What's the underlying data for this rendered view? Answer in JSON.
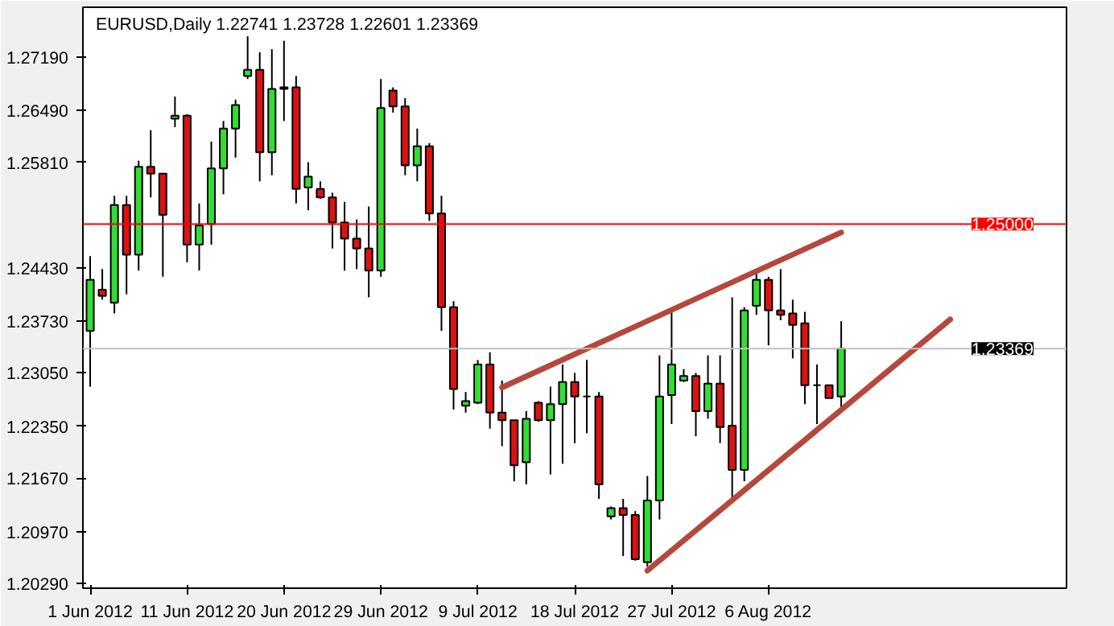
{
  "chart_data": {
    "type": "candlestick",
    "title": "EURUSD,Daily 1.22741 1.23728 1.22601 1.23369",
    "categories": [
      "1 Jun 2012",
      null,
      null,
      null,
      null,
      null,
      null,
      null,
      "11 Jun 2012",
      null,
      null,
      null,
      null,
      null,
      null,
      null,
      "20 Jun 2012",
      null,
      null,
      null,
      null,
      null,
      null,
      null,
      "29 Jun 2012",
      null,
      null,
      null,
      null,
      null,
      null,
      null,
      "9 Jul 2012",
      null,
      null,
      null,
      null,
      null,
      null,
      null,
      "18 Jul 2012",
      null,
      null,
      null,
      null,
      null,
      null,
      null,
      "27 Jul 2012",
      null,
      null,
      null,
      null,
      null,
      null,
      null,
      "6 Aug 2012",
      null,
      null,
      null,
      null,
      null,
      null,
      null,
      null,
      null,
      null,
      null,
      null,
      null,
      null,
      null
    ],
    "ohlc": [
      [
        1.236,
        1.2458,
        1.2287,
        1.2427
      ],
      [
        1.2414,
        1.2441,
        1.2401,
        1.2406
      ],
      [
        1.2397,
        1.2537,
        1.2383,
        1.2525
      ],
      [
        1.2525,
        1.2537,
        1.2408,
        1.246
      ],
      [
        1.246,
        1.2583,
        1.2439,
        1.2575
      ],
      [
        1.2575,
        1.2623,
        1.2535,
        1.2566
      ],
      [
        1.2566,
        1.2566,
        1.2431,
        1.2512
      ],
      [
        1.2638,
        1.2667,
        1.2627,
        1.2642
      ],
      [
        1.2642,
        1.2644,
        1.245,
        1.2473
      ],
      [
        1.2473,
        1.2527,
        1.2439,
        1.2498
      ],
      [
        1.25,
        1.2608,
        1.2473,
        1.2573
      ],
      [
        1.2573,
        1.2635,
        1.2539,
        1.2625
      ],
      [
        1.2625,
        1.2663,
        1.2587,
        1.2656
      ],
      [
        1.2694,
        1.2746,
        1.269,
        1.2702
      ],
      [
        1.2702,
        1.2725,
        1.2556,
        1.2594
      ],
      [
        1.2594,
        1.2729,
        1.2564,
        1.2677
      ],
      [
        1.2679,
        1.274,
        1.2635,
        1.2677
      ],
      [
        1.2679,
        1.2694,
        1.2527,
        1.2546
      ],
      [
        1.2548,
        1.2581,
        1.2518,
        1.2562
      ],
      [
        1.2546,
        1.2556,
        1.2533,
        1.2535
      ],
      [
        1.2535,
        1.2541,
        1.2468,
        1.2502
      ],
      [
        1.2502,
        1.2529,
        1.2439,
        1.2481
      ],
      [
        1.2481,
        1.2506,
        1.2441,
        1.2468
      ],
      [
        1.2468,
        1.2523,
        1.2404,
        1.2439
      ],
      [
        1.2439,
        1.269,
        1.2431,
        1.2652
      ],
      [
        1.2675,
        1.2679,
        1.2646,
        1.2654
      ],
      [
        1.2654,
        1.2665,
        1.2564,
        1.2577
      ],
      [
        1.2577,
        1.2625,
        1.2556,
        1.2602
      ],
      [
        1.2602,
        1.2606,
        1.2504,
        1.2514
      ],
      [
        1.2514,
        1.2537,
        1.236,
        1.2391
      ],
      [
        1.2391,
        1.2399,
        1.2257,
        1.2284
      ],
      [
        1.2262,
        1.228,
        1.2253,
        1.2268
      ],
      [
        1.2266,
        1.2322,
        1.2264,
        1.2316
      ],
      [
        1.2316,
        1.2332,
        1.2232,
        1.2253
      ],
      [
        1.2253,
        1.2295,
        1.2209,
        1.2243
      ],
      [
        1.2243,
        1.2243,
        1.2163,
        1.2184
      ],
      [
        1.2188,
        1.2255,
        1.2159,
        1.2245
      ],
      [
        1.2266,
        1.2268,
        1.2241,
        1.2243
      ],
      [
        1.2243,
        1.2287,
        1.2172,
        1.2264
      ],
      [
        1.2264,
        1.2316,
        1.2186,
        1.2293
      ],
      [
        1.2293,
        1.2305,
        1.2213,
        1.2274
      ],
      [
        1.2274,
        1.2322,
        1.2226,
        1.2274
      ],
      [
        1.2274,
        1.228,
        1.214,
        1.2159
      ],
      [
        1.2117,
        1.213,
        1.2113,
        1.2128
      ],
      [
        1.2128,
        1.214,
        1.2065,
        1.2119
      ],
      [
        1.2119,
        1.2124,
        1.2059,
        1.2061
      ],
      [
        1.2057,
        1.217,
        1.2051,
        1.2138
      ],
      [
        1.2138,
        1.2328,
        1.2113,
        1.2274
      ],
      [
        1.2276,
        1.2389,
        1.2238,
        1.2316
      ],
      [
        1.2295,
        1.231,
        1.2293,
        1.2301
      ],
      [
        1.2301,
        1.2305,
        1.2222,
        1.2255
      ],
      [
        1.2255,
        1.2328,
        1.2245,
        1.2291
      ],
      [
        1.2291,
        1.2328,
        1.2213,
        1.2234
      ],
      [
        1.2236,
        1.2404,
        1.214,
        1.2178
      ],
      [
        1.2178,
        1.2391,
        1.2163,
        1.2387
      ],
      [
        1.2393,
        1.2437,
        1.2381,
        1.2427
      ],
      [
        1.2427,
        1.2431,
        1.2341,
        1.2387
      ],
      [
        1.2387,
        1.2441,
        1.2374,
        1.2381
      ],
      [
        1.2383,
        1.2401,
        1.2324,
        1.2368
      ],
      [
        1.237,
        1.2385,
        1.2264,
        1.2289
      ],
      [
        1.2289,
        1.2316,
        1.2238,
        1.2289
      ],
      [
        1.2289,
        1.2289,
        1.2272,
        1.2272
      ],
      [
        1.22741,
        1.23728,
        1.22601,
        1.23369
      ],
      null,
      null,
      null,
      null,
      null,
      null,
      null,
      null,
      null
    ],
    "colors": [
      "#33dd33",
      "#dd1111",
      "#33dd33",
      "#dd1111",
      "#33dd33",
      "#dd1111",
      "#dd1111",
      "#33dd33",
      "#dd1111",
      "#33dd33",
      "#33dd33",
      "#33dd33",
      "#33dd33",
      "#33dd33",
      "#dd1111",
      "#33dd33",
      "#dd1111",
      "#dd1111",
      "#33dd33",
      "#dd1111",
      "#dd1111",
      "#dd1111",
      "#dd1111",
      "#dd1111",
      "#33dd33",
      "#dd1111",
      "#dd1111",
      "#33dd33",
      "#dd1111",
      "#dd1111",
      "#dd1111",
      "#33dd33",
      "#33dd33",
      "#dd1111",
      "#dd1111",
      "#dd1111",
      "#33dd33",
      "#dd1111",
      "#33dd33",
      "#33dd33",
      "#dd1111",
      "#000000",
      "#dd1111",
      "#33dd33",
      "#dd1111",
      "#dd1111",
      "#33dd33",
      "#33dd33",
      "#33dd33",
      "#33dd33",
      "#dd1111",
      "#33dd33",
      "#dd1111",
      "#dd1111",
      "#33dd33",
      "#33dd33",
      "#dd1111",
      "#dd1111",
      "#dd1111",
      "#dd1111",
      "#000000",
      "#dd1111",
      "#33dd33",
      null,
      null,
      null,
      null,
      null,
      null,
      null,
      null,
      null
    ],
    "series": [
      {
        "type": "line",
        "values": [
          null,
          null,
          null,
          null,
          null,
          null,
          null,
          null,
          null,
          null,
          null,
          null,
          null,
          null,
          null,
          null,
          null,
          null,
          null,
          null,
          null,
          null,
          null,
          null,
          null,
          null,
          null,
          null,
          null,
          null,
          null,
          null,
          null,
          null,
          1.2286,
          null,
          null,
          null,
          null,
          null,
          null,
          null,
          null,
          null,
          null,
          null,
          null,
          null,
          null,
          null,
          null,
          null,
          null,
          null,
          null,
          null,
          null,
          null,
          null,
          null,
          null,
          null,
          1.2489,
          null,
          null,
          null,
          null,
          null,
          null,
          null,
          null,
          null
        ],
        "color": "#b5483c"
      },
      {
        "type": "line",
        "values": [
          null,
          null,
          null,
          null,
          null,
          null,
          null,
          null,
          null,
          null,
          null,
          null,
          null,
          null,
          null,
          null,
          null,
          null,
          null,
          null,
          null,
          null,
          null,
          null,
          null,
          null,
          null,
          null,
          null,
          null,
          null,
          null,
          null,
          null,
          null,
          null,
          null,
          null,
          null,
          null,
          null,
          null,
          null,
          null,
          null,
          null,
          1.2046,
          null,
          null,
          null,
          null,
          null,
          null,
          null,
          null,
          null,
          null,
          null,
          null,
          null,
          null,
          null,
          null,
          null,
          null,
          null,
          null,
          null,
          null,
          null,
          null,
          1.2375
        ],
        "color": "#b5483c"
      }
    ],
    "ylim": [
      1.2023,
      1.2784
    ],
    "yticks": [
      {
        "value": 1.2719,
        "label": "1.27190"
      },
      {
        "value": 1.2649,
        "label": "1.26490"
      },
      {
        "value": 1.2581,
        "label": "1.25810"
      },
      {
        "value": 1.2443,
        "label": "1.24430"
      },
      {
        "value": 1.2373,
        "label": "1.23730"
      },
      {
        "value": 1.2305,
        "label": "1.23050"
      },
      {
        "value": 1.2235,
        "label": "1.22350"
      },
      {
        "value": 1.2167,
        "label": "1.21670"
      },
      {
        "value": 1.2097,
        "label": "1.20970"
      },
      {
        "value": 1.2029,
        "label": "1.20290"
      }
    ],
    "ref_lines": [
      {
        "axis": "y",
        "value": 1.25,
        "label": "1.25000",
        "color": "#ff0000"
      },
      {
        "axis": "y",
        "value": 1.23369,
        "label": "1.23369",
        "color": "#c0c0c0"
      }
    ]
  }
}
